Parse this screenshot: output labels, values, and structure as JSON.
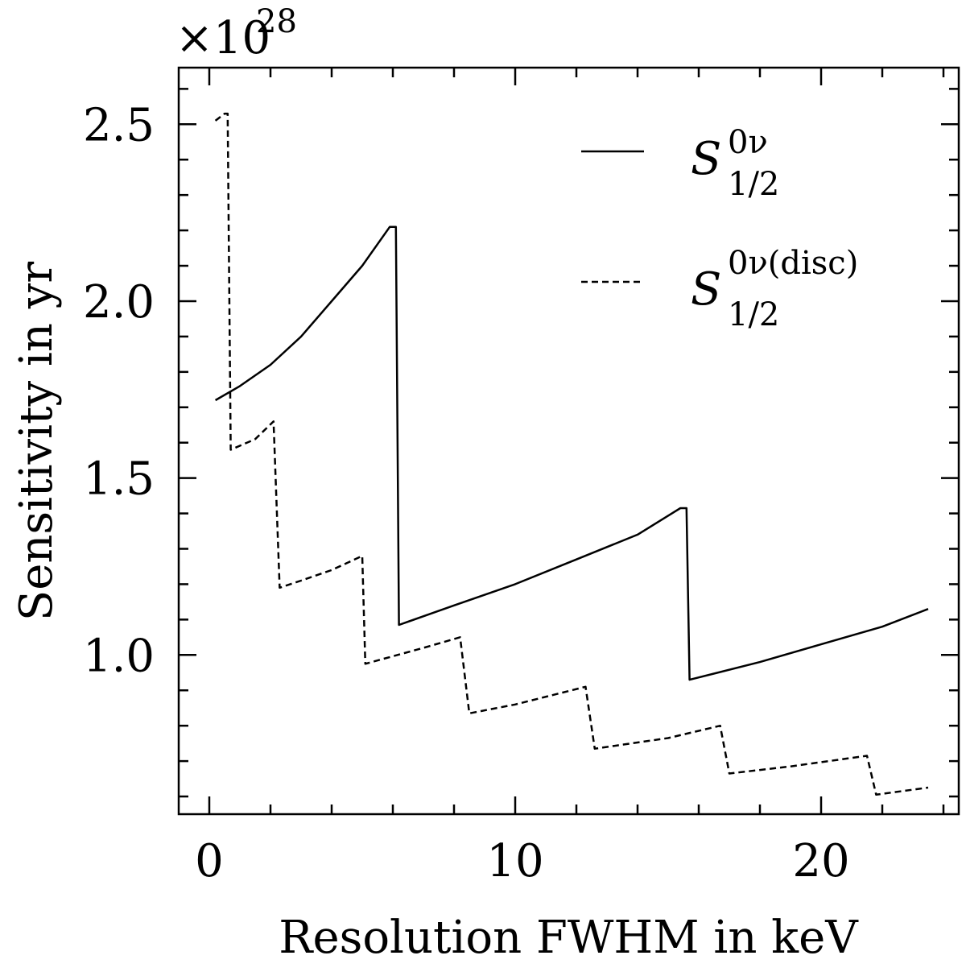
{
  "chart_data": {
    "type": "line",
    "xlabel": "Resolution FWHM in keV",
    "ylabel": "Sensitivity in yr",
    "y_scale_label": {
      "base": "×10",
      "exponent": "28"
    },
    "xlim": [
      -1,
      24.5
    ],
    "ylim": [
      0.55,
      2.66
    ],
    "y_multiplier": 1e+28,
    "x_ticks": [
      0,
      10,
      20
    ],
    "x_tick_labels": [
      "0",
      "10",
      "20"
    ],
    "y_ticks": [
      1.0,
      1.5,
      2.0,
      2.5
    ],
    "y_tick_labels": [
      "1.0",
      "1.5",
      "2.0",
      "2.5"
    ],
    "grid": false,
    "legend_position": "top-right",
    "series": [
      {
        "legend_main": "S",
        "legend_sup": "0ν",
        "legend_sub": "1/2",
        "style": "solid",
        "x": [
          0.2,
          1.0,
          2.0,
          3.0,
          4.0,
          5.0,
          5.9,
          6.1,
          6.2,
          8.0,
          10.0,
          12.0,
          14.0,
          15.4,
          15.6,
          15.7,
          18.0,
          20.0,
          22.0,
          23.5
        ],
        "y": [
          1.72,
          1.76,
          1.82,
          1.9,
          2.0,
          2.1,
          2.21,
          2.21,
          1.085,
          1.14,
          1.2,
          1.27,
          1.34,
          1.415,
          1.415,
          0.93,
          0.98,
          1.03,
          1.08,
          1.13
        ]
      },
      {
        "legend_main": "S",
        "legend_sup": "0ν(disc)",
        "legend_sub": "1/2",
        "style": "dashed",
        "x": [
          0.2,
          0.5,
          0.6,
          0.7,
          1.5,
          2.1,
          2.3,
          3.0,
          4.0,
          5.0,
          5.1,
          7.0,
          8.2,
          8.5,
          10.0,
          12.3,
          12.6,
          15.0,
          16.7,
          17.0,
          19.0,
          21.5,
          21.8,
          23.5
        ],
        "y": [
          2.51,
          2.53,
          2.53,
          1.58,
          1.61,
          1.66,
          1.19,
          1.21,
          1.24,
          1.28,
          0.975,
          1.02,
          1.05,
          0.835,
          0.86,
          0.91,
          0.735,
          0.765,
          0.8,
          0.665,
          0.685,
          0.715,
          0.605,
          0.625
        ]
      }
    ]
  }
}
